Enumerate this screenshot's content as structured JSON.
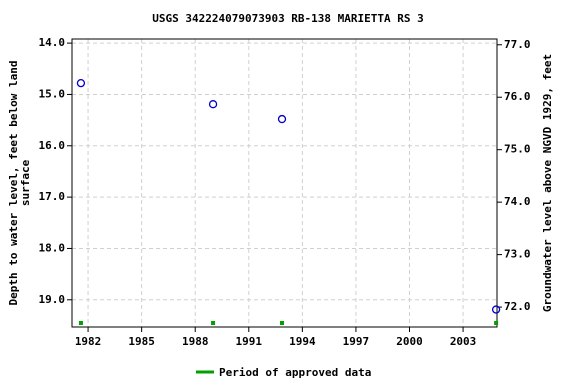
{
  "chart_data": {
    "type": "scatter",
    "title": "USGS 342224079073903 RB-138 MARIETTA RS 3",
    "y_label": "Depth to water level, feet below land surface",
    "y2_label": "Groundwater level above NGVD 1929, feet",
    "x": [
      1981.6,
      1989.0,
      1992.86,
      2004.85
    ],
    "values": [
      14.78,
      15.19,
      15.48,
      19.19
    ],
    "color": "#0000cc",
    "approved": {
      "name": "Period of approved data",
      "color": "#00a000",
      "x": [
        1981.6,
        1989.0,
        1992.86,
        2004.85
      ]
    },
    "xlim": [
      1981.1,
      2004.9
    ],
    "xticks": [
      1982,
      1985,
      1988,
      1991,
      1994,
      1997,
      2000,
      2003
    ],
    "ylim": [
      13.92,
      19.53
    ],
    "yticks": [
      {
        "value": 14,
        "label": "14.0"
      },
      {
        "value": 15,
        "label": "15.0"
      },
      {
        "value": 16,
        "label": "16.0"
      },
      {
        "value": 17,
        "label": "17.0"
      },
      {
        "value": 18,
        "label": "18.0"
      },
      {
        "value": 19,
        "label": "19.0"
      }
    ],
    "y2lim": [
      77.11,
      71.62
    ],
    "y2ticks": [
      {
        "value": 77,
        "label": "77.0"
      },
      {
        "value": 76,
        "label": "76.0"
      },
      {
        "value": 75,
        "label": "75.0"
      },
      {
        "value": 74,
        "label": "74.0"
      },
      {
        "value": 73,
        "label": "73.0"
      },
      {
        "value": 72,
        "label": "72.0"
      }
    ],
    "grid": true
  }
}
